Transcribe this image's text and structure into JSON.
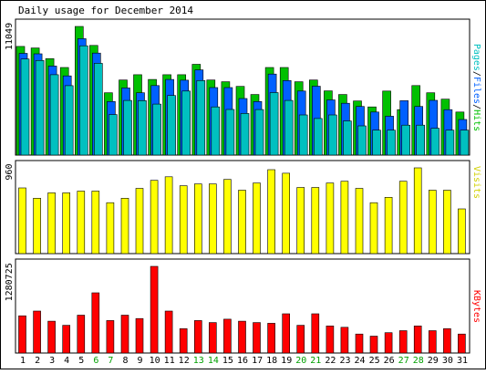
{
  "chart_data": {
    "type": "bar",
    "title": "Daily usage for December 2014",
    "categories": [
      "1",
      "2",
      "3",
      "4",
      "5",
      "6",
      "7",
      "8",
      "9",
      "10",
      "11",
      "12",
      "13",
      "14",
      "15",
      "16",
      "17",
      "18",
      "19",
      "20",
      "21",
      "22",
      "23",
      "24",
      "25",
      "26",
      "27",
      "28",
      "29",
      "30",
      "31"
    ],
    "weekend_days": [
      "6",
      "7",
      "13",
      "14",
      "20",
      "21",
      "27",
      "28"
    ],
    "panels": [
      {
        "key": "top",
        "label_parts": [
          {
            "text": "Pages",
            "color": "#00c0c0"
          },
          {
            "text": "/",
            "color": "#000000"
          },
          {
            "text": "Files",
            "color": "#0060ff"
          },
          {
            "text": "/",
            "color": "#000000"
          },
          {
            "text": "Hits",
            "color": "#00c000"
          }
        ],
        "y_max_label": "11049",
        "y_max": 11049,
        "series": [
          {
            "name": "Hits",
            "color": "#00c000",
            "values": [
              9335,
              9200,
              8280,
              7520,
              11049,
              9420,
              5350,
              6450,
              6900,
              6500,
              6900,
              6900,
              7800,
              6450,
              6300,
              5900,
              5200,
              7520,
              7520,
              6300,
              6450,
              5520,
              5200,
              4650,
              4140,
              5500,
              3900,
              5970,
              5350,
              4800,
              3700
            ]
          },
          {
            "name": "Files",
            "color": "#0060ff",
            "values": [
              8740,
              8700,
              7650,
              6800,
              10000,
              8760,
              4600,
              5770,
              5350,
              5970,
              6500,
              6430,
              7320,
              5800,
              5800,
              4860,
              4600,
              6960,
              6400,
              5500,
              5920,
              4740,
              4450,
              4180,
              3700,
              3340,
              4670,
              4180,
              4700,
              3900,
              3060
            ]
          },
          {
            "name": "Pages",
            "color": "#00c0c0",
            "values": [
              8250,
              8130,
              6900,
              5960,
              9390,
              7880,
              3480,
              4690,
              4680,
              4380,
              5120,
              5500,
              6400,
              4140,
              3920,
              3570,
              3910,
              5370,
              4690,
              3450,
              3140,
              3450,
              2930,
              2510,
              2140,
              2140,
              2570,
              2570,
              2300,
              2140,
              2140
            ]
          }
        ]
      },
      {
        "key": "middle",
        "label_parts": [
          {
            "text": "Visits",
            "color": "#d0d000"
          }
        ],
        "y_max_label": "960",
        "y_max": 960,
        "series": [
          {
            "name": "Visits",
            "color": "#ffff00",
            "values": [
              735,
              620,
              680,
              680,
              700,
              700,
              570,
              620,
              730,
              820,
              860,
              760,
              780,
              780,
              830,
              710,
              790,
              940,
              900,
              740,
              740,
              790,
              810,
              730,
              570,
              630,
              810,
              960,
              710,
              710,
              500
            ]
          }
        ]
      },
      {
        "key": "bottom",
        "label_parts": [
          {
            "text": "KBytes",
            "color": "#ff0000"
          }
        ],
        "y_max_label": "1280725",
        "y_max": 1280725,
        "series": [
          {
            "name": "KBytes",
            "color": "#ff0000",
            "values": [
              550000,
              620000,
              470000,
              410000,
              560000,
              890000,
              480000,
              560000,
              510000,
              1280725,
              620000,
              360000,
              480000,
              450000,
              500000,
              470000,
              450000,
              440000,
              580000,
              410000,
              580000,
              400000,
              380000,
              280000,
              250000,
              300000,
              330000,
              400000,
              330000,
              360000,
              280000
            ]
          }
        ]
      }
    ]
  }
}
